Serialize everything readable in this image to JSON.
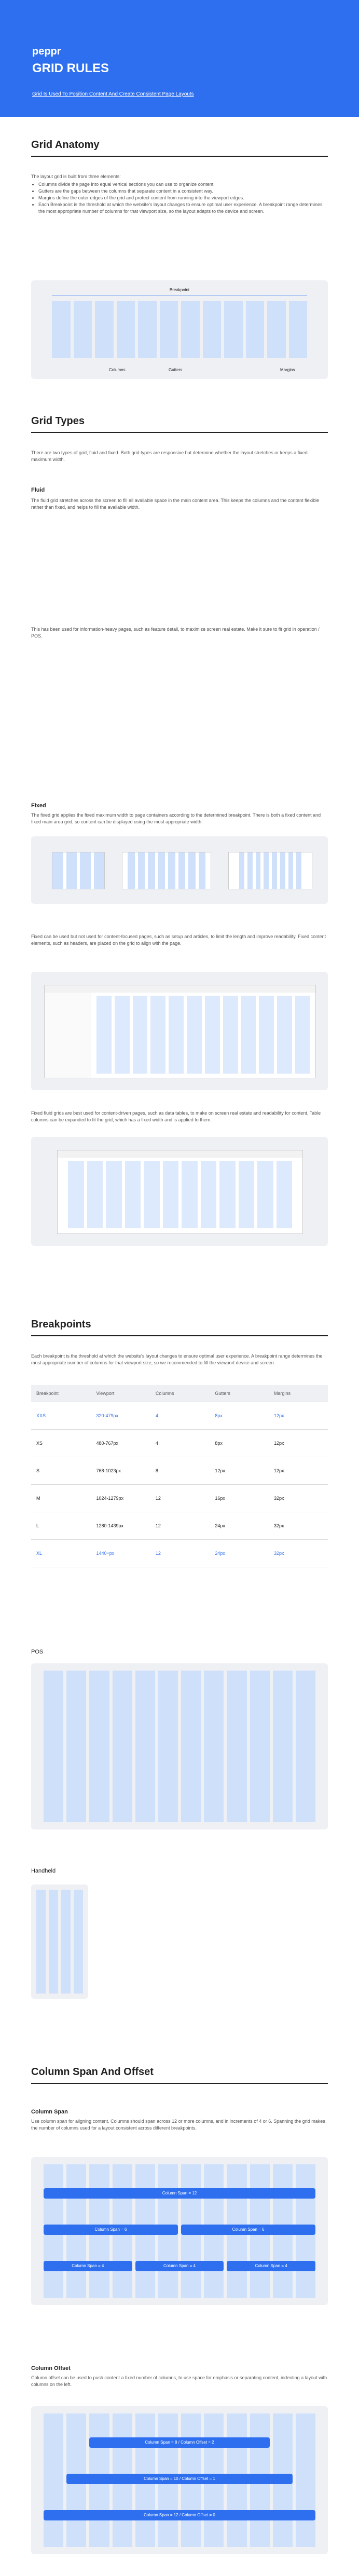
{
  "header": {
    "logo": "peppr",
    "title": "GRID RULES",
    "subtitle": "Grid Is Used To Position Content And Create Consistent Page Layouts"
  },
  "anatomy": {
    "heading": "Grid Anatomy",
    "intro": "The layout grid is built from three elements:",
    "bullets": [
      "Columns divide the page into equal vertical sections you can use to organize content.",
      "Gutters are the gaps between the columns that separate content in a consistent way.",
      "Margins define the outer edges of the grid and protect content from running into the viewport edges.",
      "Each Breakpoint is the threshold at which the website's layout changes to ensure optimal user experience. A breakpoint range determines the most appropriate number of columns for that viewport size, so the layout adapts to the device and screen."
    ],
    "labels": {
      "breakpoint": "Breakpoint",
      "columns": "Columns",
      "gutters": "Gutters",
      "margins": "Margins"
    }
  },
  "types": {
    "heading": "Grid Types",
    "intro": "There are two types of grid, fluid and fixed. Both grid types are responsive but determine whether the layout stretches or keeps a fixed maximum width.",
    "fluid": {
      "title": "Fluid",
      "text": "The fluid grid stretches across the screen to fill all available space in the main content area. This keeps the columns and the content flexible rather than fixed, and helps to fill the available width.",
      "note": "This has been used for information-heavy pages, such as feature detail, to maximize screen real estate. Make it sure to fit grid in operation / POS."
    },
    "fixed": {
      "title": "Fixed",
      "text": "The fixed grid applies the fixed maximum width to page containers according to the determined breakpoint. There is both a fixed content and fixed main area grid, so content can be displayed using the most appropriate width.",
      "note1": "Fixed can be used but not used for content-focused pages, such as setup and articles, to limit the length and improve readability. Fixed content elements, such as headers, are placed on the grid to align with the page.",
      "note2": "Fixed fluid grids are best used for content-driven pages, such as data tables, to make on screen real estate and readability for content. Table columns can be expanded to fit the grid, which has a fixed width and is applied to them."
    }
  },
  "breakpoints": {
    "heading": "Breakpoints",
    "intro": "Each breakpoint is the threshold at which the website's layout changes to ensure optimal user experience. A breakpoint range determines the most appropriate number of columns for that viewport size, so we recommended to fill the viewport device and screen.",
    "table": {
      "header": [
        "Breakpoint",
        "Viewport",
        "Columns",
        "Gutters",
        "Margins"
      ],
      "rows": [
        [
          "XXS",
          "320-479px",
          "4",
          "8px",
          "12px"
        ],
        [
          "XS",
          "480-767px",
          "4",
          "8px",
          "12px"
        ],
        [
          "S",
          "768-1023px",
          "8",
          "12px",
          "12px"
        ],
        [
          "M",
          "1024-1279px",
          "12",
          "16px",
          "32px"
        ],
        [
          "L",
          "1280-1439px",
          "12",
          "24px",
          "32px"
        ],
        [
          "XL",
          "1440+px",
          "12",
          "24px",
          "32px"
        ]
      ]
    },
    "pos": "POS",
    "handheld": "Handheld"
  },
  "span": {
    "heading": "Column Span And Offset",
    "spanTitle": "Column Span",
    "spanText": "Use column span for aligning content. Columns should span across 12 or more columns, and in increments of 4 or 6. Spanning the grid makes the number of columns used for a layout consistent across different breakpoints.",
    "spans": [
      "Column Span = 12",
      "Column Span = 6",
      "Column Span = 6",
      "Column Span = 4",
      "Column Span = 4",
      "Column Span = 4"
    ],
    "offsetTitle": "Column Offset",
    "offsetText": "Column offset can be used to push content a fixed number of columns, to use space for emphasis or separating content, indenting a layout with columns on the left.",
    "offsets": [
      "Column Span = 8 / Column Offset = 2",
      "Column Span = 10 / Column Offset = 1",
      "Column Span = 12 / Column Offset = 0"
    ]
  }
}
